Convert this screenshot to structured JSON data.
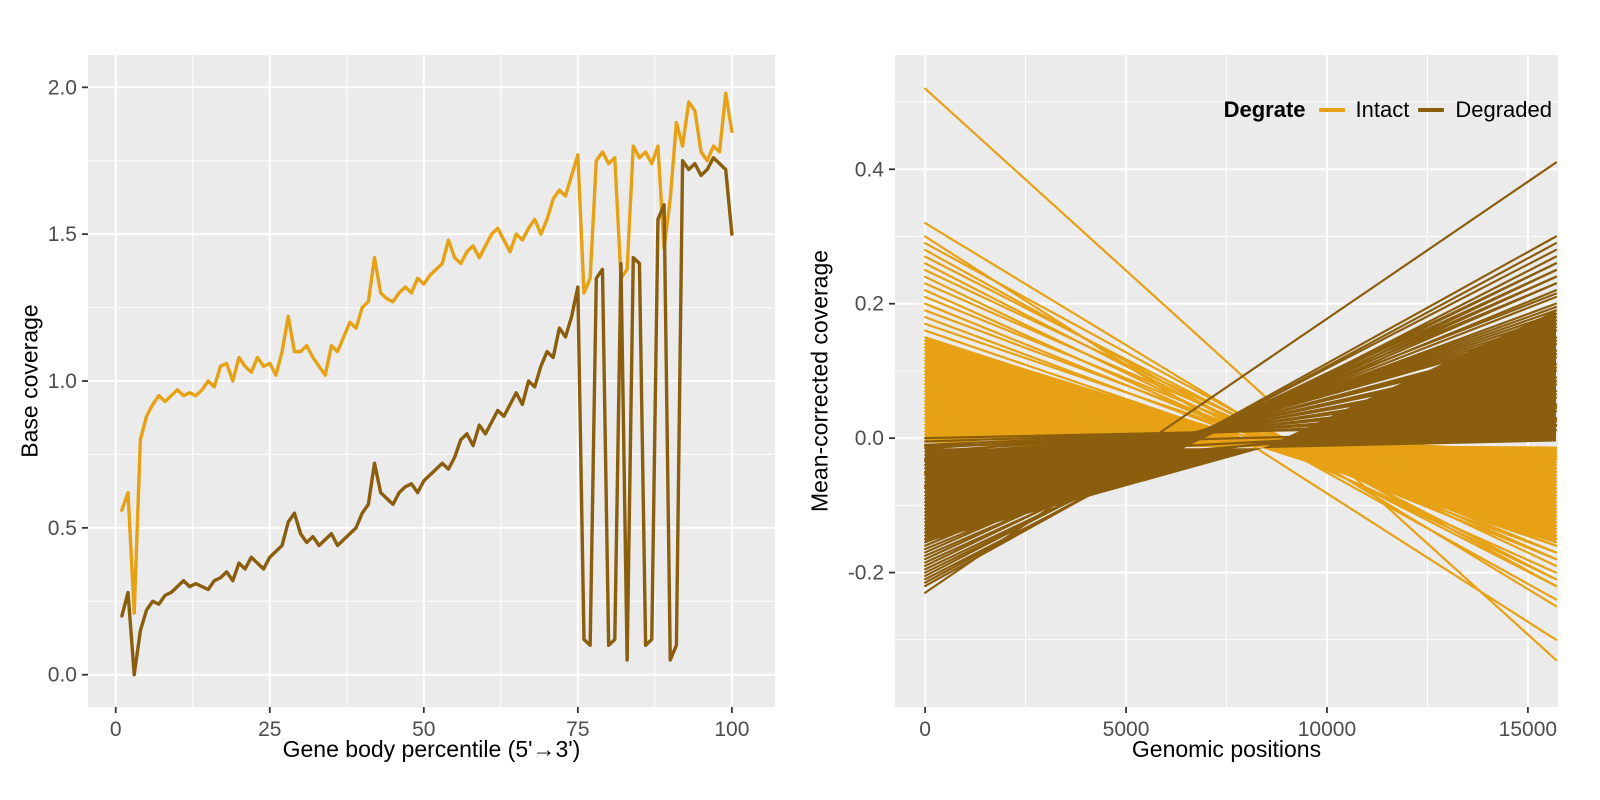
{
  "figure": {
    "background": "#FFFFFF",
    "panel_background": "#EBEBEB",
    "grid_color": "#FFFFFF",
    "tick_color": "#333333",
    "tick_label_color": "#4D4D4D"
  },
  "legend": {
    "title": "Degrate",
    "items": [
      {
        "label": "Intact",
        "color": "#E7A114"
      },
      {
        "label": "Degraded",
        "color": "#8B5E0E"
      }
    ]
  },
  "chart_data": [
    {
      "type": "line",
      "title": "",
      "xlabel": "Gene body percentile (5'→3')",
      "ylabel": "Base coverage",
      "x_from": 1,
      "x_to": 100,
      "xlim": [
        -4.5,
        107
      ],
      "ylim": [
        -0.11,
        2.11
      ],
      "x_ticks": [
        {
          "v": 0,
          "label": "0"
        },
        {
          "v": 25,
          "label": "25"
        },
        {
          "v": 50,
          "label": "50"
        },
        {
          "v": 75,
          "label": "75"
        },
        {
          "v": 100,
          "label": "100"
        }
      ],
      "y_ticks": [
        {
          "v": 0,
          "label": "0.0"
        },
        {
          "v": 0.5,
          "label": "0.5"
        },
        {
          "v": 1,
          "label": "1.0"
        },
        {
          "v": 1.5,
          "label": "1.5"
        },
        {
          "v": 2,
          "label": "2.0"
        }
      ],
      "x_minor": [
        12.5,
        37.5,
        62.5,
        87.5
      ],
      "y_minor": [
        0.25,
        0.75,
        1.25,
        1.75
      ],
      "series": [
        {
          "name": "Intact",
          "color": "#E7A114",
          "values": [
            0.56,
            0.62,
            0.21,
            0.8,
            0.88,
            0.92,
            0.95,
            0.93,
            0.95,
            0.97,
            0.95,
            0.96,
            0.95,
            0.97,
            1.0,
            0.98,
            1.05,
            1.06,
            1.0,
            1.08,
            1.05,
            1.03,
            1.08,
            1.05,
            1.06,
            1.02,
            1.1,
            1.22,
            1.1,
            1.1,
            1.12,
            1.08,
            1.05,
            1.02,
            1.12,
            1.1,
            1.15,
            1.2,
            1.18,
            1.25,
            1.27,
            1.42,
            1.3,
            1.28,
            1.27,
            1.3,
            1.32,
            1.3,
            1.35,
            1.33,
            1.36,
            1.38,
            1.4,
            1.48,
            1.42,
            1.4,
            1.44,
            1.46,
            1.42,
            1.46,
            1.5,
            1.52,
            1.48,
            1.44,
            1.5,
            1.48,
            1.52,
            1.55,
            1.5,
            1.55,
            1.62,
            1.65,
            1.63,
            1.7,
            1.77,
            1.3,
            1.35,
            1.75,
            1.78,
            1.74,
            1.76,
            1.35,
            1.38,
            1.8,
            1.76,
            1.78,
            1.74,
            1.8,
            1.45,
            1.62,
            1.88,
            1.8,
            1.95,
            1.92,
            1.78,
            1.75,
            1.8,
            1.78,
            1.98,
            1.85
          ]
        },
        {
          "name": "Degraded",
          "color": "#8B5E0E",
          "values": [
            0.2,
            0.28,
            0.0,
            0.15,
            0.22,
            0.25,
            0.24,
            0.27,
            0.28,
            0.3,
            0.32,
            0.3,
            0.31,
            0.3,
            0.29,
            0.32,
            0.33,
            0.35,
            0.32,
            0.38,
            0.36,
            0.4,
            0.38,
            0.36,
            0.4,
            0.42,
            0.44,
            0.52,
            0.55,
            0.48,
            0.45,
            0.47,
            0.44,
            0.46,
            0.48,
            0.44,
            0.46,
            0.48,
            0.5,
            0.55,
            0.58,
            0.72,
            0.62,
            0.6,
            0.58,
            0.62,
            0.64,
            0.65,
            0.62,
            0.66,
            0.68,
            0.7,
            0.72,
            0.7,
            0.74,
            0.8,
            0.82,
            0.78,
            0.85,
            0.82,
            0.86,
            0.9,
            0.88,
            0.92,
            0.96,
            0.92,
            1.0,
            0.98,
            1.05,
            1.1,
            1.08,
            1.18,
            1.15,
            1.22,
            1.32,
            0.12,
            0.1,
            1.35,
            1.38,
            0.1,
            0.12,
            1.4,
            0.05,
            1.42,
            1.4,
            0.1,
            0.12,
            1.55,
            1.6,
            0.05,
            0.1,
            1.75,
            1.72,
            1.74,
            1.7,
            1.72,
            1.76,
            1.74,
            1.72,
            1.5
          ]
        }
      ]
    },
    {
      "type": "segments",
      "title": "",
      "xlabel": "Genomic positions",
      "ylabel": "Mean-corrected coverage",
      "x_range": [
        0,
        15700
      ],
      "xlim": [
        -750,
        15750
      ],
      "ylim": [
        -0.4,
        0.57
      ],
      "x_ticks": [
        {
          "v": 0,
          "label": "0"
        },
        {
          "v": 5000,
          "label": "5000"
        },
        {
          "v": 10000,
          "label": "10000"
        },
        {
          "v": 15000,
          "label": "15000"
        }
      ],
      "y_ticks": [
        {
          "v": -0.2,
          "label": "-0.2"
        },
        {
          "v": 0,
          "label": "0.0"
        },
        {
          "v": 0.2,
          "label": "0.2"
        },
        {
          "v": 0.4,
          "label": "0.4"
        }
      ],
      "x_minor": [
        2500,
        7500,
        12500
      ],
      "y_minor": [
        -0.3,
        -0.1,
        0.1,
        0.3,
        0.5
      ],
      "series": [
        {
          "name": "Intact",
          "color": "#E7A114",
          "band": {
            "left": [
              -0.005,
              0.15
            ],
            "pivot": [
              7800,
              0.005
            ],
            "right": [
              -0.155,
              -0.02
            ]
          },
          "segments": [
            [
              0.52,
              -0.33
            ],
            [
              0.32,
              -0.25
            ],
            [
              0.3,
              -0.3
            ],
            [
              0.29,
              -0.22
            ],
            [
              0.28,
              -0.24
            ],
            [
              0.27,
              -0.21
            ],
            [
              0.26,
              -0.22
            ],
            [
              0.25,
              -0.19
            ],
            [
              0.24,
              -0.21
            ],
            [
              0.23,
              -0.18
            ],
            [
              0.22,
              -0.2
            ],
            [
              0.21,
              -0.17
            ],
            [
              0.2,
              -0.18
            ],
            [
              0.19,
              -0.16
            ],
            [
              0.18,
              -0.17
            ],
            [
              0.17,
              -0.15
            ],
            [
              0.16,
              -0.16
            ],
            [
              0.15,
              -0.155
            ],
            [
              0.145,
              -0.15
            ],
            [
              0.14,
              -0.145
            ],
            [
              0.135,
              -0.14
            ],
            [
              0.13,
              -0.135
            ],
            [
              0.125,
              -0.13
            ],
            [
              0.12,
              -0.125
            ],
            [
              0.115,
              -0.12
            ],
            [
              0.11,
              -0.115
            ],
            [
              0.105,
              -0.11
            ],
            [
              0.1,
              -0.105
            ],
            [
              0.095,
              -0.1
            ],
            [
              0.09,
              -0.095
            ],
            [
              0.085,
              -0.09
            ],
            [
              0.08,
              -0.085
            ],
            [
              0.075,
              -0.08
            ],
            [
              0.07,
              -0.075
            ],
            [
              0.065,
              -0.07
            ],
            [
              0.06,
              -0.065
            ],
            [
              0.055,
              -0.06
            ],
            [
              0.05,
              -0.055
            ],
            [
              0.045,
              -0.05
            ],
            [
              0.04,
              -0.045
            ],
            [
              0.035,
              -0.04
            ],
            [
              0.03,
              -0.036
            ],
            [
              0.025,
              -0.032
            ],
            [
              0.02,
              -0.03
            ],
            [
              0.015,
              -0.027
            ],
            [
              0.01,
              -0.024
            ],
            [
              0.005,
              -0.021
            ],
            [
              0.0,
              -0.02
            ],
            [
              -0.005,
              -0.017
            ],
            [
              -0.01,
              -0.014
            ]
          ]
        },
        {
          "name": "Degraded",
          "color": "#8B5E0E",
          "band": {
            "left": [
              -0.155,
              -0.015
            ],
            "pivot": [
              8400,
              -0.015
            ],
            "right": [
              -0.005,
              0.19
            ]
          },
          "segments": [
            [
              -0.23,
              0.41
            ],
            [
              -0.22,
              0.3
            ],
            [
              -0.215,
              0.29
            ],
            [
              -0.21,
              0.27
            ],
            [
              -0.205,
              0.28
            ],
            [
              -0.2,
              0.26
            ],
            [
              -0.195,
              0.25
            ],
            [
              -0.19,
              0.26
            ],
            [
              -0.185,
              0.24
            ],
            [
              -0.18,
              0.25
            ],
            [
              -0.175,
              0.23
            ],
            [
              -0.17,
              0.24
            ],
            [
              -0.165,
              0.22
            ],
            [
              -0.16,
              0.23
            ],
            [
              -0.155,
              0.21
            ],
            [
              -0.15,
              0.215
            ],
            [
              -0.145,
              0.2
            ],
            [
              -0.14,
              0.195
            ],
            [
              -0.135,
              0.19
            ],
            [
              -0.13,
              0.185
            ],
            [
              -0.125,
              0.18
            ],
            [
              -0.12,
              0.175
            ],
            [
              -0.115,
              0.17
            ],
            [
              -0.11,
              0.165
            ],
            [
              -0.105,
              0.16
            ],
            [
              -0.1,
              0.15
            ],
            [
              -0.095,
              0.145
            ],
            [
              -0.09,
              0.14
            ],
            [
              -0.085,
              0.13
            ],
            [
              -0.08,
              0.125
            ],
            [
              -0.075,
              0.12
            ],
            [
              -0.07,
              0.11
            ],
            [
              -0.065,
              0.105
            ],
            [
              -0.06,
              0.1
            ],
            [
              -0.055,
              0.09
            ],
            [
              -0.05,
              0.085
            ],
            [
              -0.045,
              0.08
            ],
            [
              -0.04,
              0.07
            ],
            [
              -0.035,
              0.065
            ],
            [
              -0.03,
              0.06
            ],
            [
              -0.025,
              0.05
            ],
            [
              -0.02,
              0.045
            ],
            [
              -0.015,
              0.04
            ],
            [
              -0.01,
              0.03
            ],
            [
              -0.005,
              0.025
            ],
            [
              0.0,
              0.02
            ],
            [
              -0.012,
              0.012
            ],
            [
              -0.032,
              0.018
            ],
            [
              -0.052,
              0.028
            ],
            [
              -0.072,
              0.048
            ]
          ]
        }
      ]
    }
  ]
}
